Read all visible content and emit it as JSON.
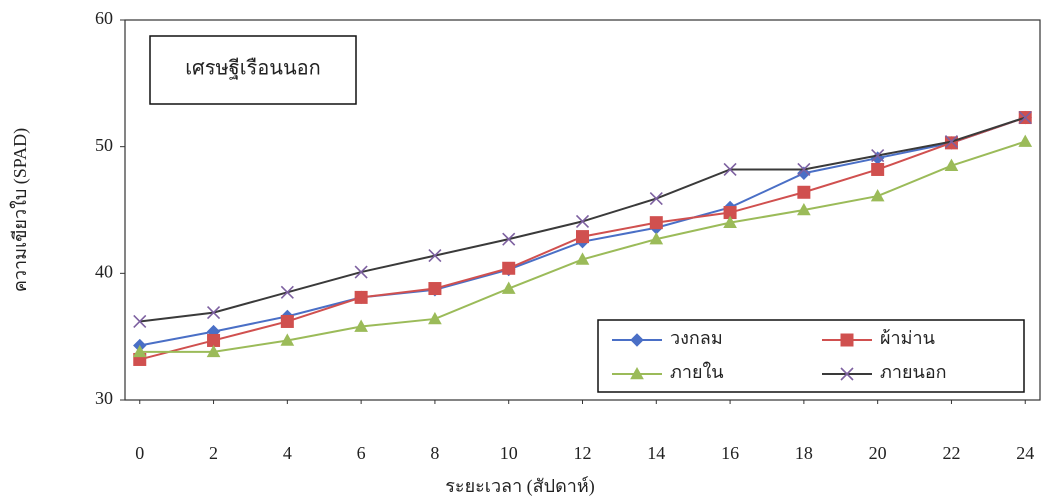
{
  "chart_data": {
    "type": "line",
    "annotation": "เศรษฐีเรือนนอก",
    "x_label": "ระยะเวลา (สัปดาห์)",
    "y_label": "ความเขียวใบ (SPAD)",
    "x": [
      0,
      2,
      4,
      6,
      8,
      10,
      12,
      14,
      16,
      18,
      20,
      22,
      24
    ],
    "xlim": [
      -0.4,
      24.4
    ],
    "xticks": [
      0,
      2,
      4,
      6,
      8,
      10,
      12,
      14,
      16,
      18,
      20,
      22,
      24
    ],
    "ylim": [
      30,
      60
    ],
    "yticks": [
      30,
      40,
      50,
      60
    ],
    "legend": "lower right",
    "series": [
      {
        "name": "วงกลม",
        "color": "#4a6fc6",
        "marker": "diamond",
        "values": [
          34.3,
          35.4,
          36.6,
          38.1,
          38.7,
          40.3,
          42.5,
          43.6,
          45.2,
          47.9,
          49.1,
          50.3,
          52.3
        ]
      },
      {
        "name": "ผ้าม่าน",
        "color": "#d0504f",
        "marker": "square",
        "values": [
          33.2,
          34.7,
          36.2,
          38.1,
          38.8,
          40.4,
          42.9,
          44.0,
          44.8,
          46.4,
          48.2,
          50.3,
          52.3
        ]
      },
      {
        "name": "ภายใน",
        "color": "#9bbb59",
        "marker": "triangle",
        "values": [
          33.8,
          33.8,
          34.7,
          35.8,
          36.4,
          38.8,
          41.1,
          42.7,
          44.0,
          45.0,
          46.1,
          48.5,
          50.4
        ]
      },
      {
        "name": "ภายนอก",
        "color": "#3a3a3a",
        "marker": "x",
        "values": [
          36.2,
          36.9,
          38.5,
          40.1,
          41.4,
          42.7,
          44.1,
          45.9,
          48.2,
          48.2,
          49.3,
          50.4,
          52.3
        ]
      }
    ]
  }
}
